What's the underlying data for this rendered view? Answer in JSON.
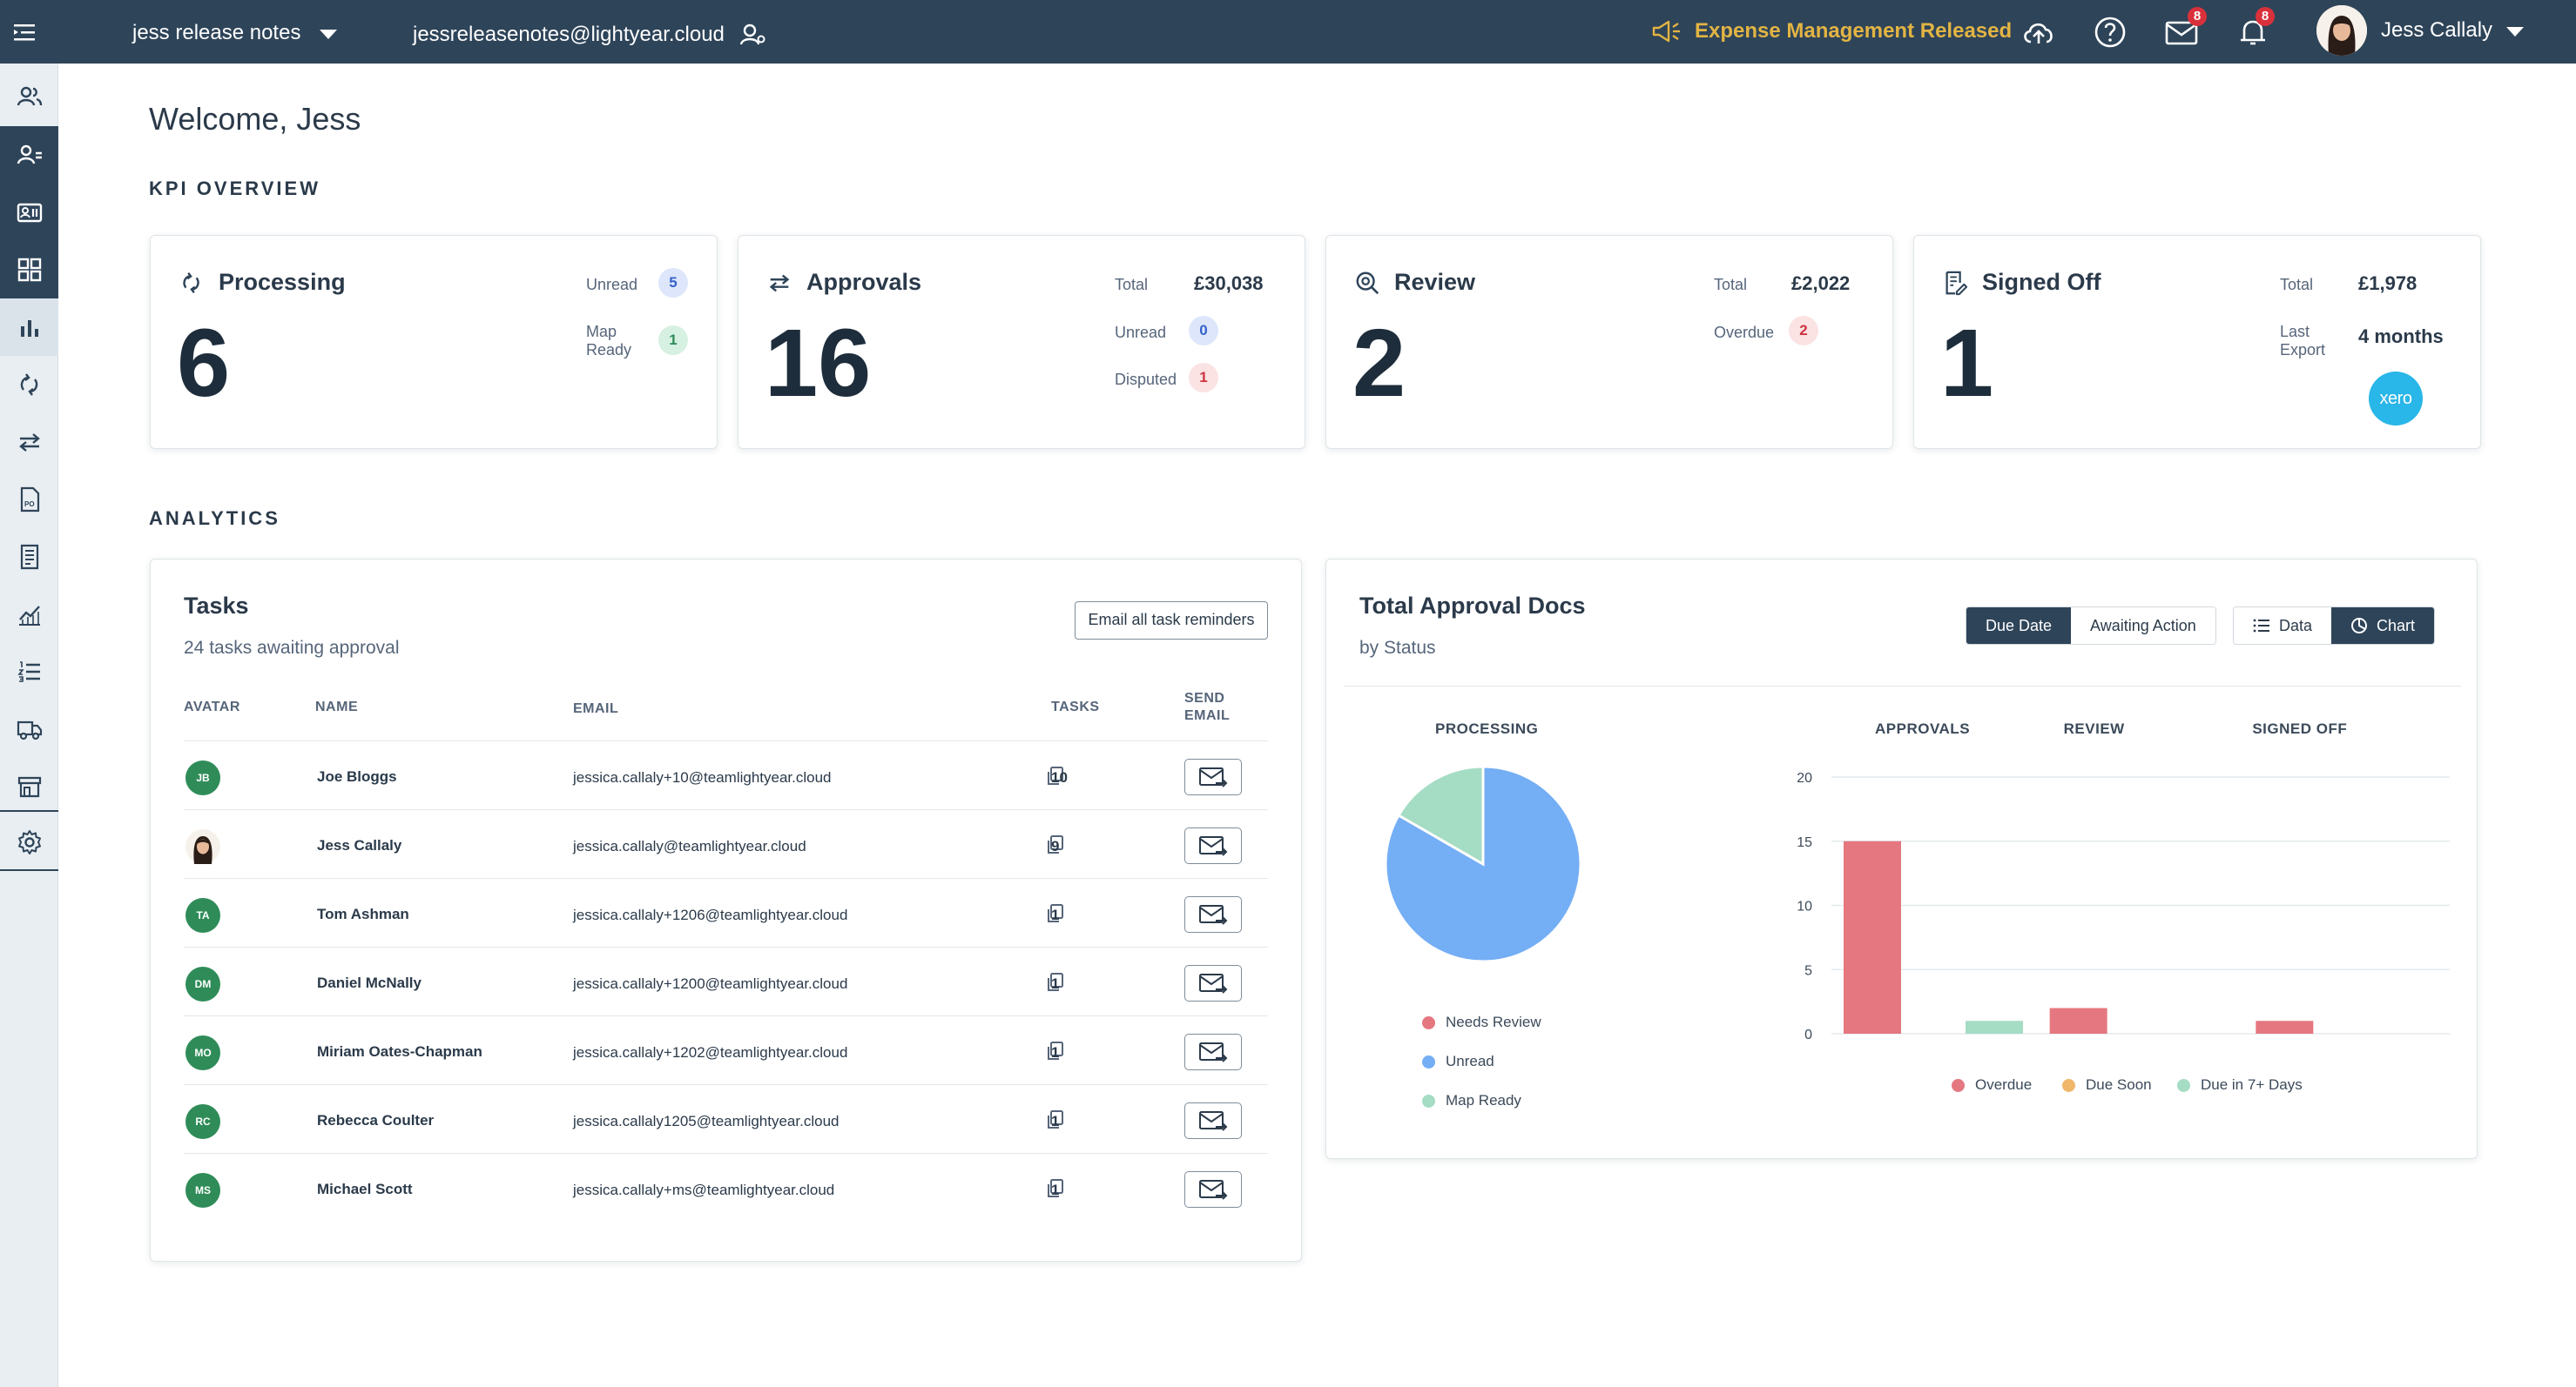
{
  "topbar": {
    "workspace": "jess release notes",
    "workspace_email": "jessreleasenotes@lightyear.cloud",
    "announcement": "Expense Management Released",
    "mail_badge": "8",
    "notification_badge": "8",
    "user_name": "Jess Callaly"
  },
  "welcome": "Welcome, Jess",
  "sections": {
    "kpi": "KPI OVERVIEW",
    "analytics": "ANALYTICS"
  },
  "kpi": {
    "processing": {
      "title": "Processing",
      "value": "6",
      "unread_label": "Unread",
      "unread": "5",
      "map_ready_label": "Map\nReady",
      "map_ready": "1"
    },
    "approvals": {
      "title": "Approvals",
      "value": "16",
      "total_label": "Total",
      "total": "£30,038",
      "unread_label": "Unread",
      "unread": "0",
      "disputed_label": "Disputed",
      "disputed": "1"
    },
    "review": {
      "title": "Review",
      "value": "2",
      "total_label": "Total",
      "total": "£2,022",
      "overdue_label": "Overdue",
      "overdue": "2"
    },
    "signed_off": {
      "title": "Signed Off",
      "value": "1",
      "total_label": "Total",
      "total": "£1,978",
      "last_export_label": "Last\nExport",
      "last_export": "4 months",
      "integration": "xero"
    }
  },
  "tasks": {
    "title": "Tasks",
    "subtitle": "24 tasks awaiting approval",
    "email_all_button": "Email all task reminders",
    "columns": {
      "avatar": "AVATAR",
      "name": "NAME",
      "email": "EMAIL",
      "tasks": "TASKS",
      "send": "SEND\nEMAIL"
    },
    "rows": [
      {
        "initials": "JB",
        "name": "Joe Bloggs",
        "email": "jessica.callaly+10@teamlightyear.cloud",
        "tasks": "10"
      },
      {
        "initials": "",
        "name": "Jess Callaly",
        "email": "jessica.callaly@teamlightyear.cloud",
        "tasks": "9"
      },
      {
        "initials": "TA",
        "name": "Tom Ashman",
        "email": "jessica.callaly+1206@teamlightyear.cloud",
        "tasks": "1"
      },
      {
        "initials": "DM",
        "name": "Daniel McNally",
        "email": "jessica.callaly+1200@teamlightyear.cloud",
        "tasks": "1"
      },
      {
        "initials": "MO",
        "name": "Miriam Oates-Chapman",
        "email": "jessica.callaly+1202@teamlightyear.cloud",
        "tasks": "1"
      },
      {
        "initials": "RC",
        "name": "Rebecca Coulter",
        "email": "jessica.callaly1205@teamlightyear.cloud",
        "tasks": "1"
      },
      {
        "initials": "MS",
        "name": "Michael Scott",
        "email": "jessica.callaly+ms@teamlightyear.cloud",
        "tasks": "1"
      }
    ]
  },
  "approval_docs": {
    "title": "Total Approval Docs",
    "subtitle": "by Status",
    "toggle_a": [
      "Due Date",
      "Awaiting Action"
    ],
    "toggle_a_selected": "Due Date",
    "toggle_b": [
      "Data",
      "Chart"
    ],
    "toggle_b_selected": "Chart"
  },
  "chart_data": [
    {
      "type": "pie",
      "title": "PROCESSING",
      "labels": [
        "Needs Review",
        "Unread",
        "Map Ready"
      ],
      "values": [
        0,
        5,
        1
      ],
      "colors": [
        "#e57780",
        "#74aef5",
        "#a5dcc4"
      ],
      "legend": "bottom"
    },
    {
      "type": "bar",
      "categories": [
        "APPROVALS",
        "REVIEW",
        "SIGNED OFF"
      ],
      "series": [
        {
          "name": "Overdue",
          "values": [
            15,
            2,
            1
          ],
          "color": "#e57780"
        },
        {
          "name": "Due Soon",
          "values": [
            0,
            0,
            0
          ],
          "color": "#f0b76b"
        },
        {
          "name": "Due in 7+ Days",
          "values": [
            1,
            0,
            0
          ],
          "color": "#a5dcc4"
        }
      ],
      "ylim": [
        0,
        20
      ],
      "yticks": [
        0,
        5,
        10,
        15,
        20
      ],
      "grid": true,
      "legend": "bottom"
    }
  ]
}
